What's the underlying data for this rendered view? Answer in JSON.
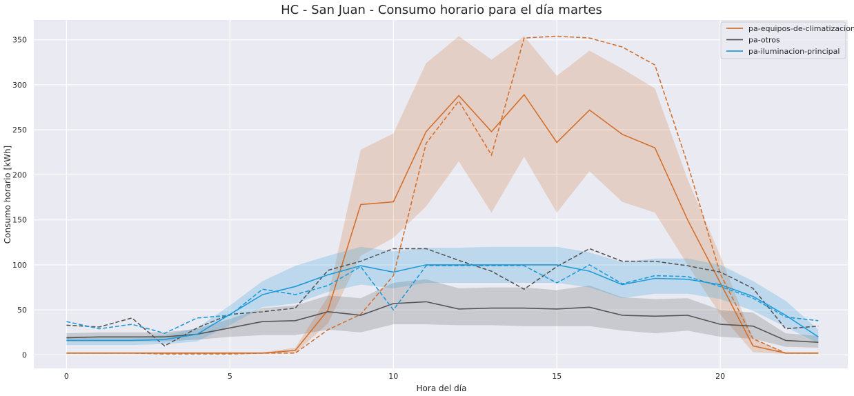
{
  "chart_data": {
    "type": "line",
    "title": "HC - San Juan - Consumo horario para el día martes",
    "xlabel": "Hora del día",
    "ylabel": "Consumo horario [kWh]",
    "xlim": [
      -1,
      23.9
    ],
    "ylim": [
      -15,
      372
    ],
    "xticks": [
      0,
      5,
      10,
      15,
      20
    ],
    "yticks": [
      0,
      50,
      100,
      150,
      200,
      250,
      300,
      350
    ],
    "grid": true,
    "legend_position": "top-right",
    "x": [
      0,
      1,
      2,
      3,
      4,
      5,
      6,
      7,
      8,
      9,
      10,
      11,
      12,
      13,
      14,
      15,
      16,
      17,
      18,
      19,
      20,
      21,
      22,
      23
    ],
    "series": [
      {
        "name": "pa-equipos-de-climatizacion",
        "color": "#d2702d",
        "mean": [
          2,
          2,
          2,
          2,
          2,
          2,
          2,
          5,
          50,
          167,
          170,
          248,
          288,
          248,
          289,
          236,
          272,
          245,
          230,
          150,
          80,
          10,
          2,
          2
        ],
        "lower": [
          1,
          1,
          1,
          1,
          1,
          1,
          1,
          2,
          35,
          110,
          130,
          165,
          215,
          158,
          220,
          158,
          204,
          170,
          158,
          100,
          45,
          3,
          1,
          1
        ],
        "upper": [
          3,
          3,
          3,
          3,
          3,
          3,
          3,
          8,
          65,
          228,
          246,
          324,
          354,
          328,
          354,
          310,
          338,
          318,
          296,
          195,
          110,
          18,
          3,
          3
        ],
        "dashed": [
          2,
          2,
          2,
          1,
          1,
          1,
          2,
          2,
          28,
          45,
          88,
          235,
          282,
          222,
          352,
          354,
          352,
          342,
          322,
          212,
          90,
          18,
          2,
          2
        ]
      },
      {
        "name": "pa-otros",
        "color": "#555555",
        "mean": [
          19,
          20,
          20,
          20,
          23,
          30,
          37,
          38,
          48,
          44,
          57,
          59,
          51,
          52,
          52,
          51,
          53,
          44,
          43,
          44,
          34,
          32,
          16,
          14
        ],
        "lower": [
          15,
          15,
          15,
          15,
          17,
          20,
          22,
          22,
          28,
          25,
          34,
          34,
          33,
          33,
          32,
          32,
          32,
          27,
          24,
          27,
          20,
          18,
          9,
          8
        ],
        "upper": [
          24,
          25,
          25,
          25,
          29,
          40,
          52,
          55,
          66,
          63,
          80,
          84,
          74,
          75,
          75,
          72,
          77,
          64,
          62,
          63,
          50,
          47,
          24,
          21
        ],
        "dashed": [
          33,
          31,
          41,
          10,
          30,
          45,
          48,
          52,
          94,
          104,
          118,
          118,
          105,
          93,
          73,
          98,
          118,
          104,
          104,
          99,
          92,
          74,
          29,
          32
        ]
      },
      {
        "name": "pa-iluminacion-principal",
        "color": "#1f9bd8",
        "mean": [
          16,
          16,
          16,
          17,
          23,
          45,
          67,
          76,
          89,
          99,
          92,
          100,
          100,
          100,
          100,
          100,
          93,
          78,
          85,
          84,
          78,
          65,
          44,
          20
        ],
        "lower": [
          11,
          11,
          11,
          12,
          15,
          33,
          53,
          57,
          70,
          78,
          74,
          80,
          80,
          80,
          80,
          80,
          75,
          63,
          68,
          68,
          62,
          49,
          31,
          13
        ],
        "upper": [
          20,
          20,
          20,
          22,
          30,
          55,
          82,
          99,
          110,
          120,
          115,
          119,
          119,
          120,
          120,
          120,
          114,
          103,
          107,
          107,
          100,
          82,
          60,
          28
        ],
        "dashed": [
          37,
          29,
          34,
          24,
          41,
          44,
          73,
          67,
          77,
          98,
          50,
          99,
          99,
          99,
          99,
          80,
          100,
          79,
          88,
          87,
          76,
          63,
          42,
          38
        ]
      }
    ]
  }
}
